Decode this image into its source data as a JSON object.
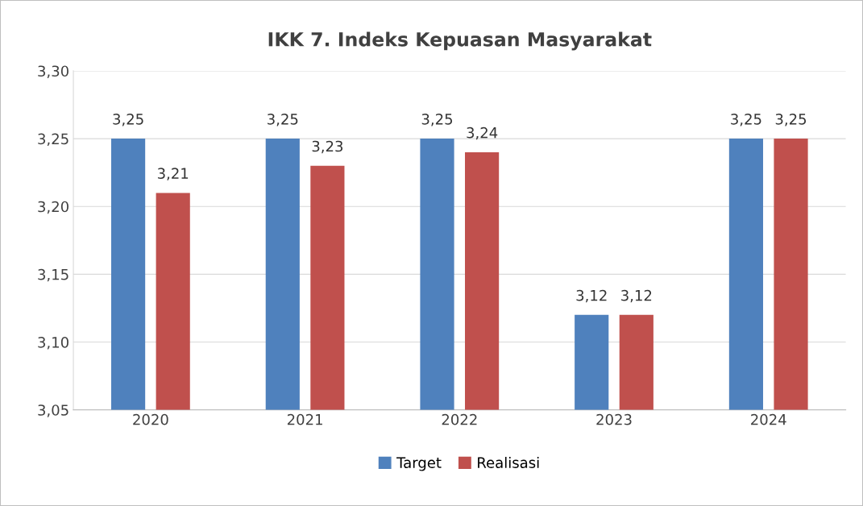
{
  "chart_data": {
    "type": "bar",
    "title": "IKK 7. Indeks Kepuasan Masyarakat",
    "categories": [
      "2020",
      "2021",
      "2022",
      "2023",
      "2024"
    ],
    "series": [
      {
        "name": "Target",
        "color": "#4f81bd",
        "values": [
          3.25,
          3.25,
          3.25,
          3.12,
          3.25
        ],
        "value_labels": [
          "3,25",
          "3,25",
          "3,25",
          "3,12",
          "3,25"
        ]
      },
      {
        "name": "Realisasi",
        "color": "#c0504d",
        "values": [
          3.21,
          3.23,
          3.24,
          3.12,
          3.25
        ],
        "value_labels": [
          "3,21",
          "3,23",
          "3,24",
          "3,12",
          "3,25"
        ]
      }
    ],
    "ylim": [
      3.05,
      3.3
    ],
    "yticks": [
      {
        "value": 3.05,
        "label": "3,05"
      },
      {
        "value": 3.1,
        "label": "3,10"
      },
      {
        "value": 3.15,
        "label": "3,15"
      },
      {
        "value": 3.2,
        "label": "3,20"
      },
      {
        "value": 3.25,
        "label": "3,25"
      },
      {
        "value": 3.3,
        "label": "3,30"
      }
    ],
    "grid": "y",
    "legend": "bottom"
  }
}
